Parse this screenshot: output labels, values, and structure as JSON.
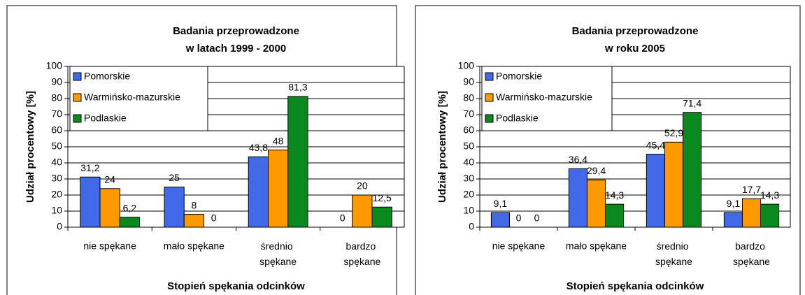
{
  "chart_data": [
    {
      "type": "bar",
      "title": [
        "Badania przeprowadzone",
        "w latach 1999 - 2000"
      ],
      "xlabel": "Stopień spękania odcinków",
      "ylabel": "Udział procentowy [%]",
      "categories": [
        "nie spękane",
        "mało spękane",
        "średnio spękane",
        "bardzo spękane"
      ],
      "series": [
        {
          "name": "Pomorskie",
          "color": "#4169e8",
          "values": [
            31.2,
            25,
            43.8,
            0
          ],
          "value_labels": [
            "31,2",
            "25",
            "43,8",
            "0"
          ]
        },
        {
          "name": "Warmińsko-mazurskie",
          "color": "#ff9900",
          "values": [
            24,
            8,
            48,
            20
          ]
        },
        {
          "name": "Podlaskie",
          "color": "#0a8a1e",
          "values": [
            6.2,
            0,
            81.3,
            12.5
          ],
          "value_labels": [
            "6,2",
            "0",
            "81,3",
            "12,5"
          ]
        }
      ],
      "ylim": [
        0,
        100
      ],
      "yticks": [
        0,
        10,
        20,
        30,
        40,
        50,
        60,
        70,
        80,
        90,
        100
      ],
      "grid": true,
      "legend": "top-left"
    },
    {
      "type": "bar",
      "title": [
        "Badania przeprowadzone",
        "w roku 2005"
      ],
      "xlabel": "Stopień spękania odcinków",
      "ylabel": "Udział procentowy [%]",
      "categories": [
        "nie spękane",
        "mało spękane",
        "średnio spękane",
        "bardzo spękane"
      ],
      "series": [
        {
          "name": "Pomorskie",
          "color": "#4169e8",
          "values": [
            9.1,
            36.4,
            45.4,
            9.1
          ],
          "value_labels": [
            "9,1",
            "36,4",
            "45,4",
            "9,1"
          ]
        },
        {
          "name": "Warmińsko-mazurskie",
          "color": "#ff9900",
          "values": [
            0,
            29.4,
            52.9,
            17.7
          ],
          "value_labels": [
            "0",
            "29,4",
            "52,9",
            "17,7"
          ]
        },
        {
          "name": "Podlaskie",
          "color": "#0a8a1e",
          "values": [
            0,
            14.3,
            71.4,
            14.3
          ],
          "value_labels": [
            "0",
            "14,3",
            "71,4",
            "14,3"
          ]
        }
      ],
      "ylim": [
        0,
        100
      ],
      "yticks": [
        0,
        10,
        20,
        30,
        40,
        50,
        60,
        70,
        80,
        90,
        100
      ],
      "grid": true,
      "legend": "top-left"
    }
  ]
}
